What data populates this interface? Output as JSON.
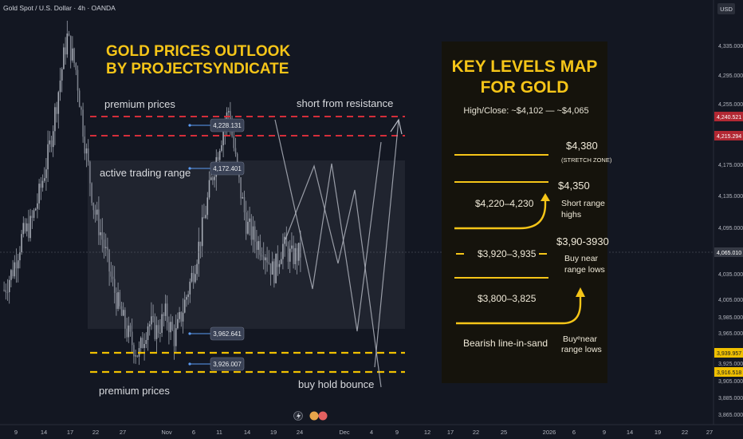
{
  "header": {
    "symbol": "Gold Spot / U.S. Dollar · 4h · OANDA",
    "currency": "USD"
  },
  "title": {
    "line1": "GOLD PRICES OUTLOOK",
    "line2": "BY PROJECTSYNDICATE"
  },
  "labels": {
    "premium_top": "premium prices",
    "active_range": "active trading range",
    "premium_bottom": "premium prices",
    "short_resistance": "short from resistance",
    "buy_hold": "buy hold bounce"
  },
  "markers": [
    {
      "label": "4,228.131",
      "price": 4228.131
    },
    {
      "label": "4,172.401",
      "price": 4172.401
    },
    {
      "label": "3,962.641",
      "price": 3962.641
    },
    {
      "label": "3,926.007",
      "price": 3926.007
    }
  ],
  "key_levels": {
    "title1": "KEY LEVELS MAP",
    "title2": "FOR GOLD",
    "subtitle": "High/Close: ~$4,102 — ~$4,065",
    "level1_price": "$4,380",
    "level1_note": "(STRETCH ZONE)",
    "level2_price": "$4,350",
    "level2_note1": "Short range",
    "level2_note2": "highs",
    "range_left": "$4,220–4,230",
    "level3_mid": "$3,920–3,935",
    "level3_price": "$3,90-3930",
    "level3_note1": "Buy near",
    "level3_note2": "range lows",
    "level4_left": "$3,800–3,825",
    "bearish": "Bearish line-in-sand",
    "level4_note1": "Buyᵉnear",
    "level4_note2": "range lows"
  },
  "axis": {
    "y_ticks": [
      "4,335.000",
      "4,295.000",
      "4,255.000",
      "4,175.000",
      "4,135.000",
      "4,095.000",
      "4,035.000",
      "4,005.000",
      "3,985.000",
      "3,965.000",
      "3,925.000",
      "3,905.000",
      "3,885.000",
      "3,865.000"
    ],
    "price_tags": [
      {
        "label": "4,240.521",
        "color": "#b22833"
      },
      {
        "label": "4,215.294",
        "color": "#b22833"
      },
      {
        "label": "4,065.010",
        "color": "#363a45"
      },
      {
        "label": "3,939.957",
        "color": "#f0c000"
      },
      {
        "label": "3,916.518",
        "color": "#f0c000"
      }
    ],
    "x_ticks": [
      "9",
      "14",
      "17",
      "22",
      "27",
      "Nov",
      "6",
      "11",
      "14",
      "19",
      "24",
      "Dec",
      "4",
      "9",
      "12",
      "17",
      "22",
      "25",
      "2026",
      "6",
      "9",
      "14",
      "19",
      "22",
      "27"
    ]
  },
  "colors": {
    "background": "#131722",
    "candles": "#9aa0ab",
    "resistance": "#d42e3a",
    "support": "#f0c000",
    "accent": "#f5c518",
    "panel": "#15130c"
  },
  "chart_data": {
    "type": "candlestick",
    "instrument": "Gold Spot / U.S. Dollar",
    "timeframe": "4h",
    "source": "OANDA",
    "ylim": [
      3855,
      4360
    ],
    "resistance_levels": [
      4240.521,
      4215.294
    ],
    "support_levels": [
      3939.957,
      3916.518
    ],
    "last_price": 4065.01,
    "series": [
      {
        "values": [
          4020,
          4045,
          4085,
          4100,
          4140,
          4190,
          4260,
          4330,
          4290,
          4200,
          4120,
          4080,
          4030,
          3990,
          3960,
          3940,
          3980,
          3970,
          3990,
          3960,
          4000,
          4040,
          4090,
          4150,
          4200,
          4240,
          4160,
          4100,
          4080,
          4070,
          4040,
          4075,
          4060,
          4065
        ]
      }
    ]
  }
}
